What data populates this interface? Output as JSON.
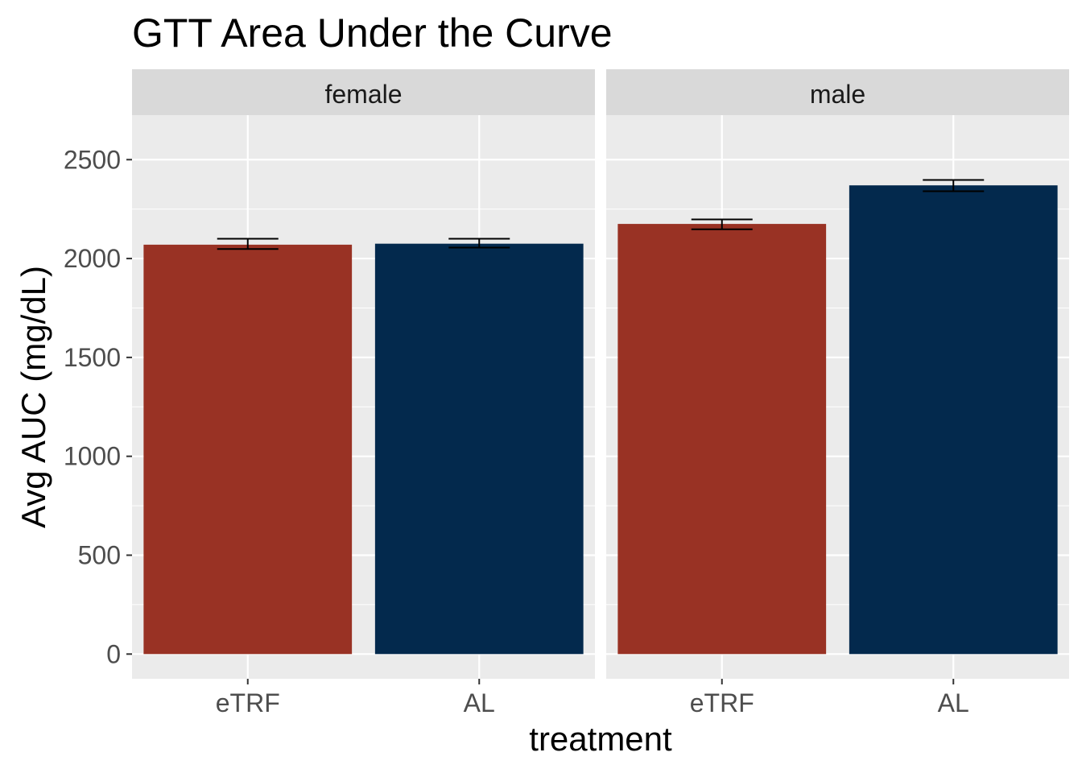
{
  "chart_data": {
    "type": "bar",
    "title": "GTT Area Under the Curve",
    "xlabel": "treatment",
    "ylabel": "Avg AUC (mg/dL)",
    "ylim": [
      -125,
      2725
    ],
    "yticks": [
      0,
      500,
      1000,
      1500,
      2000,
      2500
    ],
    "grid": true,
    "categories": [
      "eTRF",
      "AL"
    ],
    "colors": {
      "eTRF": "#993224",
      "AL": "#03294d"
    },
    "facets": [
      {
        "name": "female",
        "bars": [
          {
            "category": "eTRF",
            "value": 2070,
            "err_low": 2048,
            "err_high": 2100
          },
          {
            "category": "AL",
            "value": 2075,
            "err_low": 2055,
            "err_high": 2100
          }
        ]
      },
      {
        "name": "male",
        "bars": [
          {
            "category": "eTRF",
            "value": 2175,
            "err_low": 2148,
            "err_high": 2198
          },
          {
            "category": "AL",
            "value": 2370,
            "err_low": 2340,
            "err_high": 2397
          }
        ]
      }
    ]
  }
}
